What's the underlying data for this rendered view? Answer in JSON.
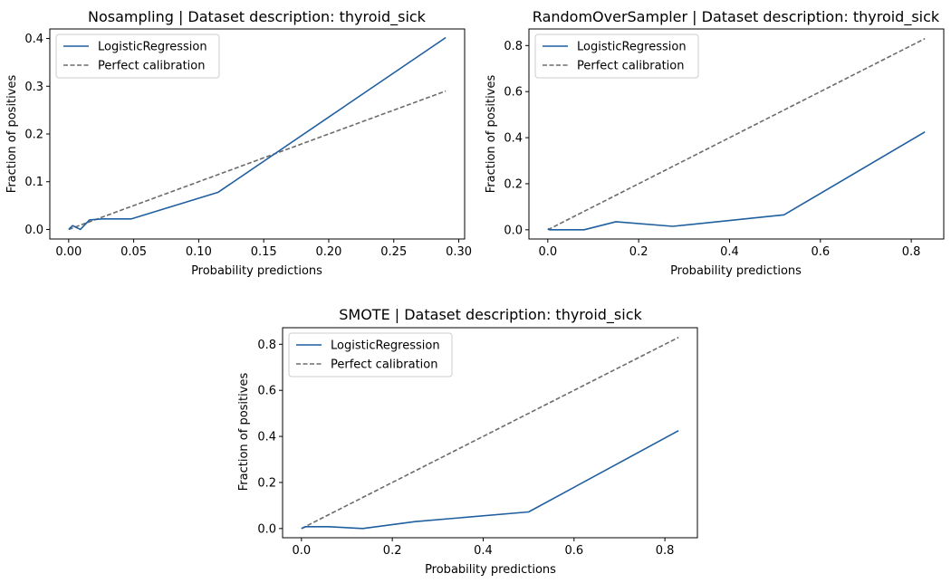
{
  "figure": {
    "background": "#ffffff"
  },
  "chart_data": [
    {
      "type": "line",
      "title": "Nosampling | Dataset description: thyroid_sick",
      "xlabel": "Probability predictions",
      "ylabel": "Fraction of positives",
      "xlim": [
        -0.0145,
        0.3045
      ],
      "ylim": [
        -0.02,
        0.42
      ],
      "xticks": [
        0.0,
        0.05,
        0.1,
        0.15,
        0.2,
        0.25,
        0.3
      ],
      "xtick_labels": [
        "0.00",
        "0.05",
        "0.10",
        "0.15",
        "0.20",
        "0.25",
        "0.30"
      ],
      "yticks": [
        0.0,
        0.1,
        0.2,
        0.3,
        0.4
      ],
      "ytick_labels": [
        "0.0",
        "0.1",
        "0.2",
        "0.3",
        "0.4"
      ],
      "grid": false,
      "legend": "upper-left",
      "series": [
        {
          "name": "LogisticRegression",
          "color": "#1f5f9f",
          "style": "solid",
          "x": [
            0.0,
            0.003,
            0.009,
            0.016,
            0.026,
            0.048,
            0.115,
            0.29
          ],
          "y": [
            0.0,
            0.008,
            0.0,
            0.02,
            0.022,
            0.022,
            0.078,
            0.402
          ]
        },
        {
          "name": "Perfect calibration",
          "color": "#6b6b6b",
          "style": "dashed",
          "x": [
            0.0,
            0.29
          ],
          "y": [
            0.0,
            0.29
          ]
        }
      ]
    },
    {
      "type": "line",
      "title": "RandomOverSampler | Dataset description: thyroid_sick",
      "xlabel": "Probability predictions",
      "ylabel": "Fraction of positives",
      "xlim": [
        -0.0415,
        0.8715
      ],
      "ylim": [
        -0.04,
        0.872
      ],
      "xticks": [
        0.0,
        0.2,
        0.4,
        0.6,
        0.8
      ],
      "xtick_labels": [
        "0.0",
        "0.2",
        "0.4",
        "0.6",
        "0.8"
      ],
      "yticks": [
        0.0,
        0.2,
        0.4,
        0.6,
        0.8
      ],
      "ytick_labels": [
        "0.0",
        "0.2",
        "0.4",
        "0.6",
        "0.8"
      ],
      "grid": false,
      "legend": "upper-left",
      "series": [
        {
          "name": "LogisticRegression",
          "color": "#1f5f9f",
          "style": "solid",
          "x": [
            0.0,
            0.004,
            0.08,
            0.15,
            0.275,
            0.52,
            0.83
          ],
          "y": [
            0.005,
            0.0,
            0.0,
            0.035,
            0.015,
            0.065,
            0.425
          ]
        },
        {
          "name": "Perfect calibration",
          "color": "#6b6b6b",
          "style": "dashed",
          "x": [
            0.0,
            0.83
          ],
          "y": [
            0.0,
            0.83
          ]
        }
      ]
    },
    {
      "type": "line",
      "title": "SMOTE | Dataset description: thyroid_sick",
      "xlabel": "Probability predictions",
      "ylabel": "Fraction of positives",
      "xlim": [
        -0.0415,
        0.8715
      ],
      "ylim": [
        -0.04,
        0.872
      ],
      "xticks": [
        0.0,
        0.2,
        0.4,
        0.6,
        0.8
      ],
      "xtick_labels": [
        "0.0",
        "0.2",
        "0.4",
        "0.6",
        "0.8"
      ],
      "yticks": [
        0.0,
        0.2,
        0.4,
        0.6,
        0.8
      ],
      "ytick_labels": [
        "0.0",
        "0.2",
        "0.4",
        "0.6",
        "0.8"
      ],
      "grid": false,
      "legend": "upper-left",
      "series": [
        {
          "name": "LogisticRegression",
          "color": "#1f5f9f",
          "style": "solid",
          "x": [
            0.0,
            0.01,
            0.06,
            0.135,
            0.25,
            0.5,
            0.83
          ],
          "y": [
            0.0,
            0.008,
            0.008,
            0.0,
            0.03,
            0.072,
            0.425
          ]
        },
        {
          "name": "Perfect calibration",
          "color": "#6b6b6b",
          "style": "dashed",
          "x": [
            0.0,
            0.83
          ],
          "y": [
            0.0,
            0.83
          ]
        }
      ]
    }
  ]
}
